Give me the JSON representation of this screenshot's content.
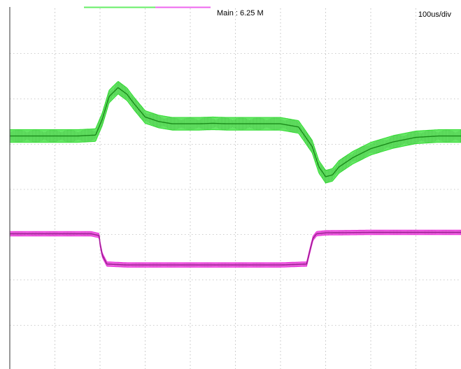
{
  "header": {
    "sample_rate": "Main : 6.25 M",
    "timebase": "100us/div"
  },
  "chart_data": {
    "type": "line",
    "title": "",
    "xlabel": "",
    "ylabel": "",
    "grid": true,
    "divisions": {
      "x": 10,
      "y": 8
    },
    "time_per_div_us": 100,
    "xlim_us": [
      0,
      1000
    ],
    "ylim_div": [
      0,
      8
    ],
    "series": [
      {
        "color": "#33dd33",
        "trace_color": "#1a8a1a",
        "band_div": 0.14,
        "x_us": [
          0,
          150,
          190,
          205,
          220,
          240,
          260,
          275,
          300,
          330,
          360,
          390,
          420,
          450,
          480,
          520,
          560,
          600,
          640,
          670,
          685,
          700,
          715,
          730,
          760,
          800,
          850,
          900,
          950,
          1000
        ],
        "y_div": [
          5.18,
          5.18,
          5.2,
          5.55,
          6.05,
          6.25,
          6.1,
          5.9,
          5.6,
          5.5,
          5.45,
          5.45,
          5.45,
          5.46,
          5.45,
          5.45,
          5.45,
          5.45,
          5.38,
          4.95,
          4.5,
          4.28,
          4.32,
          4.5,
          4.7,
          4.9,
          5.05,
          5.15,
          5.18,
          5.18
        ]
      },
      {
        "color": "#ee33dd",
        "trace_color": "#9a2090",
        "band_div": 0.05,
        "x_us": [
          0,
          180,
          198,
          200,
          205,
          215,
          260,
          400,
          600,
          658,
          664,
          672,
          680,
          700,
          800,
          900,
          1000
        ],
        "y_div": [
          3.02,
          3.02,
          2.98,
          2.8,
          2.55,
          2.35,
          2.33,
          2.33,
          2.33,
          2.35,
          2.6,
          2.92,
          3.02,
          3.04,
          3.05,
          3.05,
          3.05
        ]
      }
    ]
  }
}
